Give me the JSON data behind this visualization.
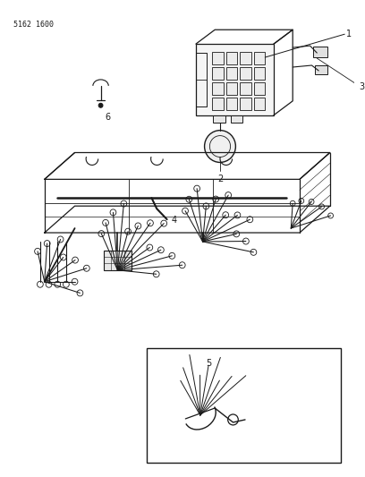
{
  "bg_color": "#ffffff",
  "line_color": "#1a1a1a",
  "part_number": "5162 1600",
  "figsize": [
    4.08,
    5.33
  ],
  "dpi": 100
}
